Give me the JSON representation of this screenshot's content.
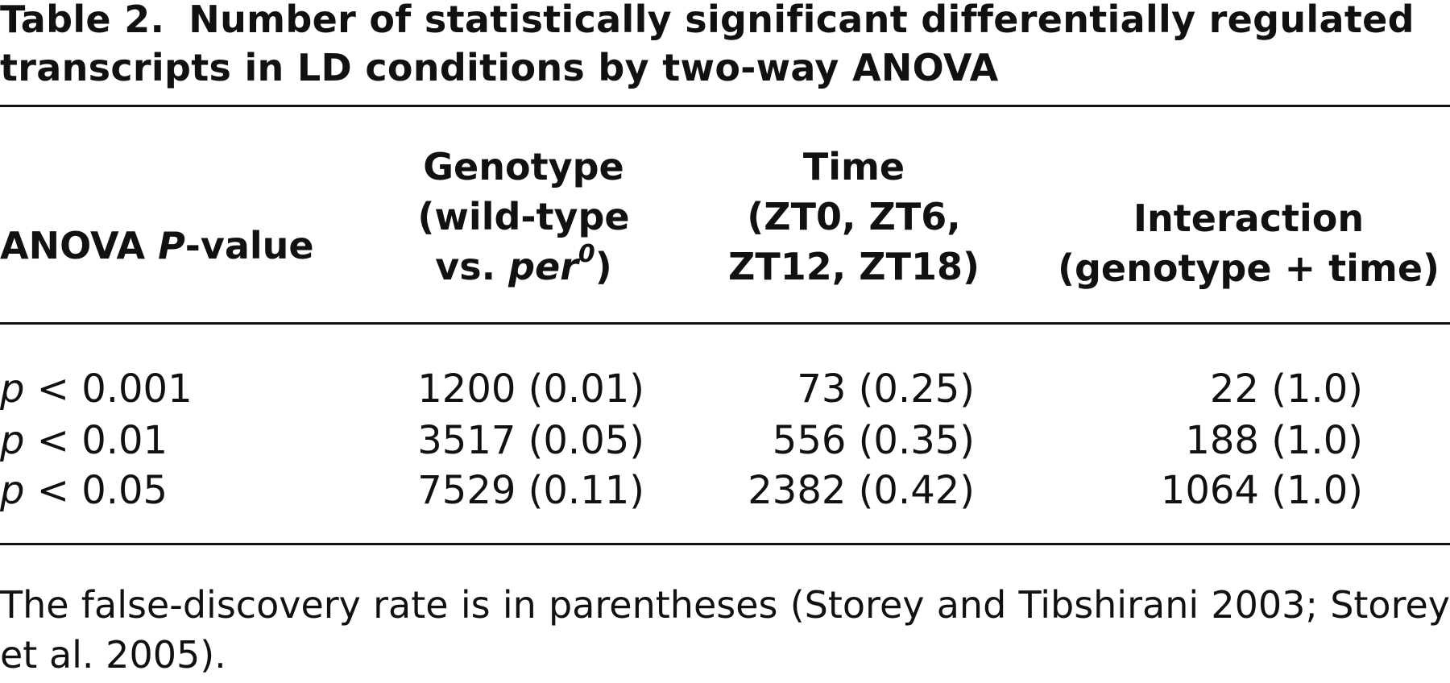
{
  "table": {
    "label": "Table 2.",
    "title": "Number of statistically significant differentially regulated transcripts in LD conditions by two-way ANOVA",
    "header": {
      "col0_prefix": "ANOVA ",
      "col0_ital": "P",
      "col0_suffix": "-value",
      "col1_line1": "Genotype",
      "col1_line2": "(wild-type",
      "col1_line3_prefix": "vs. ",
      "col1_line3_ital": "per",
      "col1_line3_sup": "0",
      "col1_line3_suffix": ")",
      "col2_line1": "Time",
      "col2_line2": "(ZT0, ZT6,",
      "col2_line3": "ZT12, ZT18)",
      "col3_line1": "Interaction",
      "col3_line2": "(genotype + time)"
    },
    "rows": [
      {
        "p_ital": "p",
        "p_text": " < 0.001",
        "genotype": "1200 (0.01)",
        "time": "73 (0.25)",
        "interaction": "22 (1.0)"
      },
      {
        "p_ital": "p",
        "p_text": " < 0.01",
        "genotype": "3517 (0.05)",
        "time": "556 (0.35)",
        "interaction": "188 (1.0)"
      },
      {
        "p_ital": "p",
        "p_text": " < 0.05",
        "genotype": "7529 (0.11)",
        "time": "2382 (0.42)",
        "interaction": "1064 (1.0)"
      }
    ],
    "footnote": "The false-discovery rate is in parentheses (Storey and Tibshirani 2003; Storey et al. 2005)."
  }
}
